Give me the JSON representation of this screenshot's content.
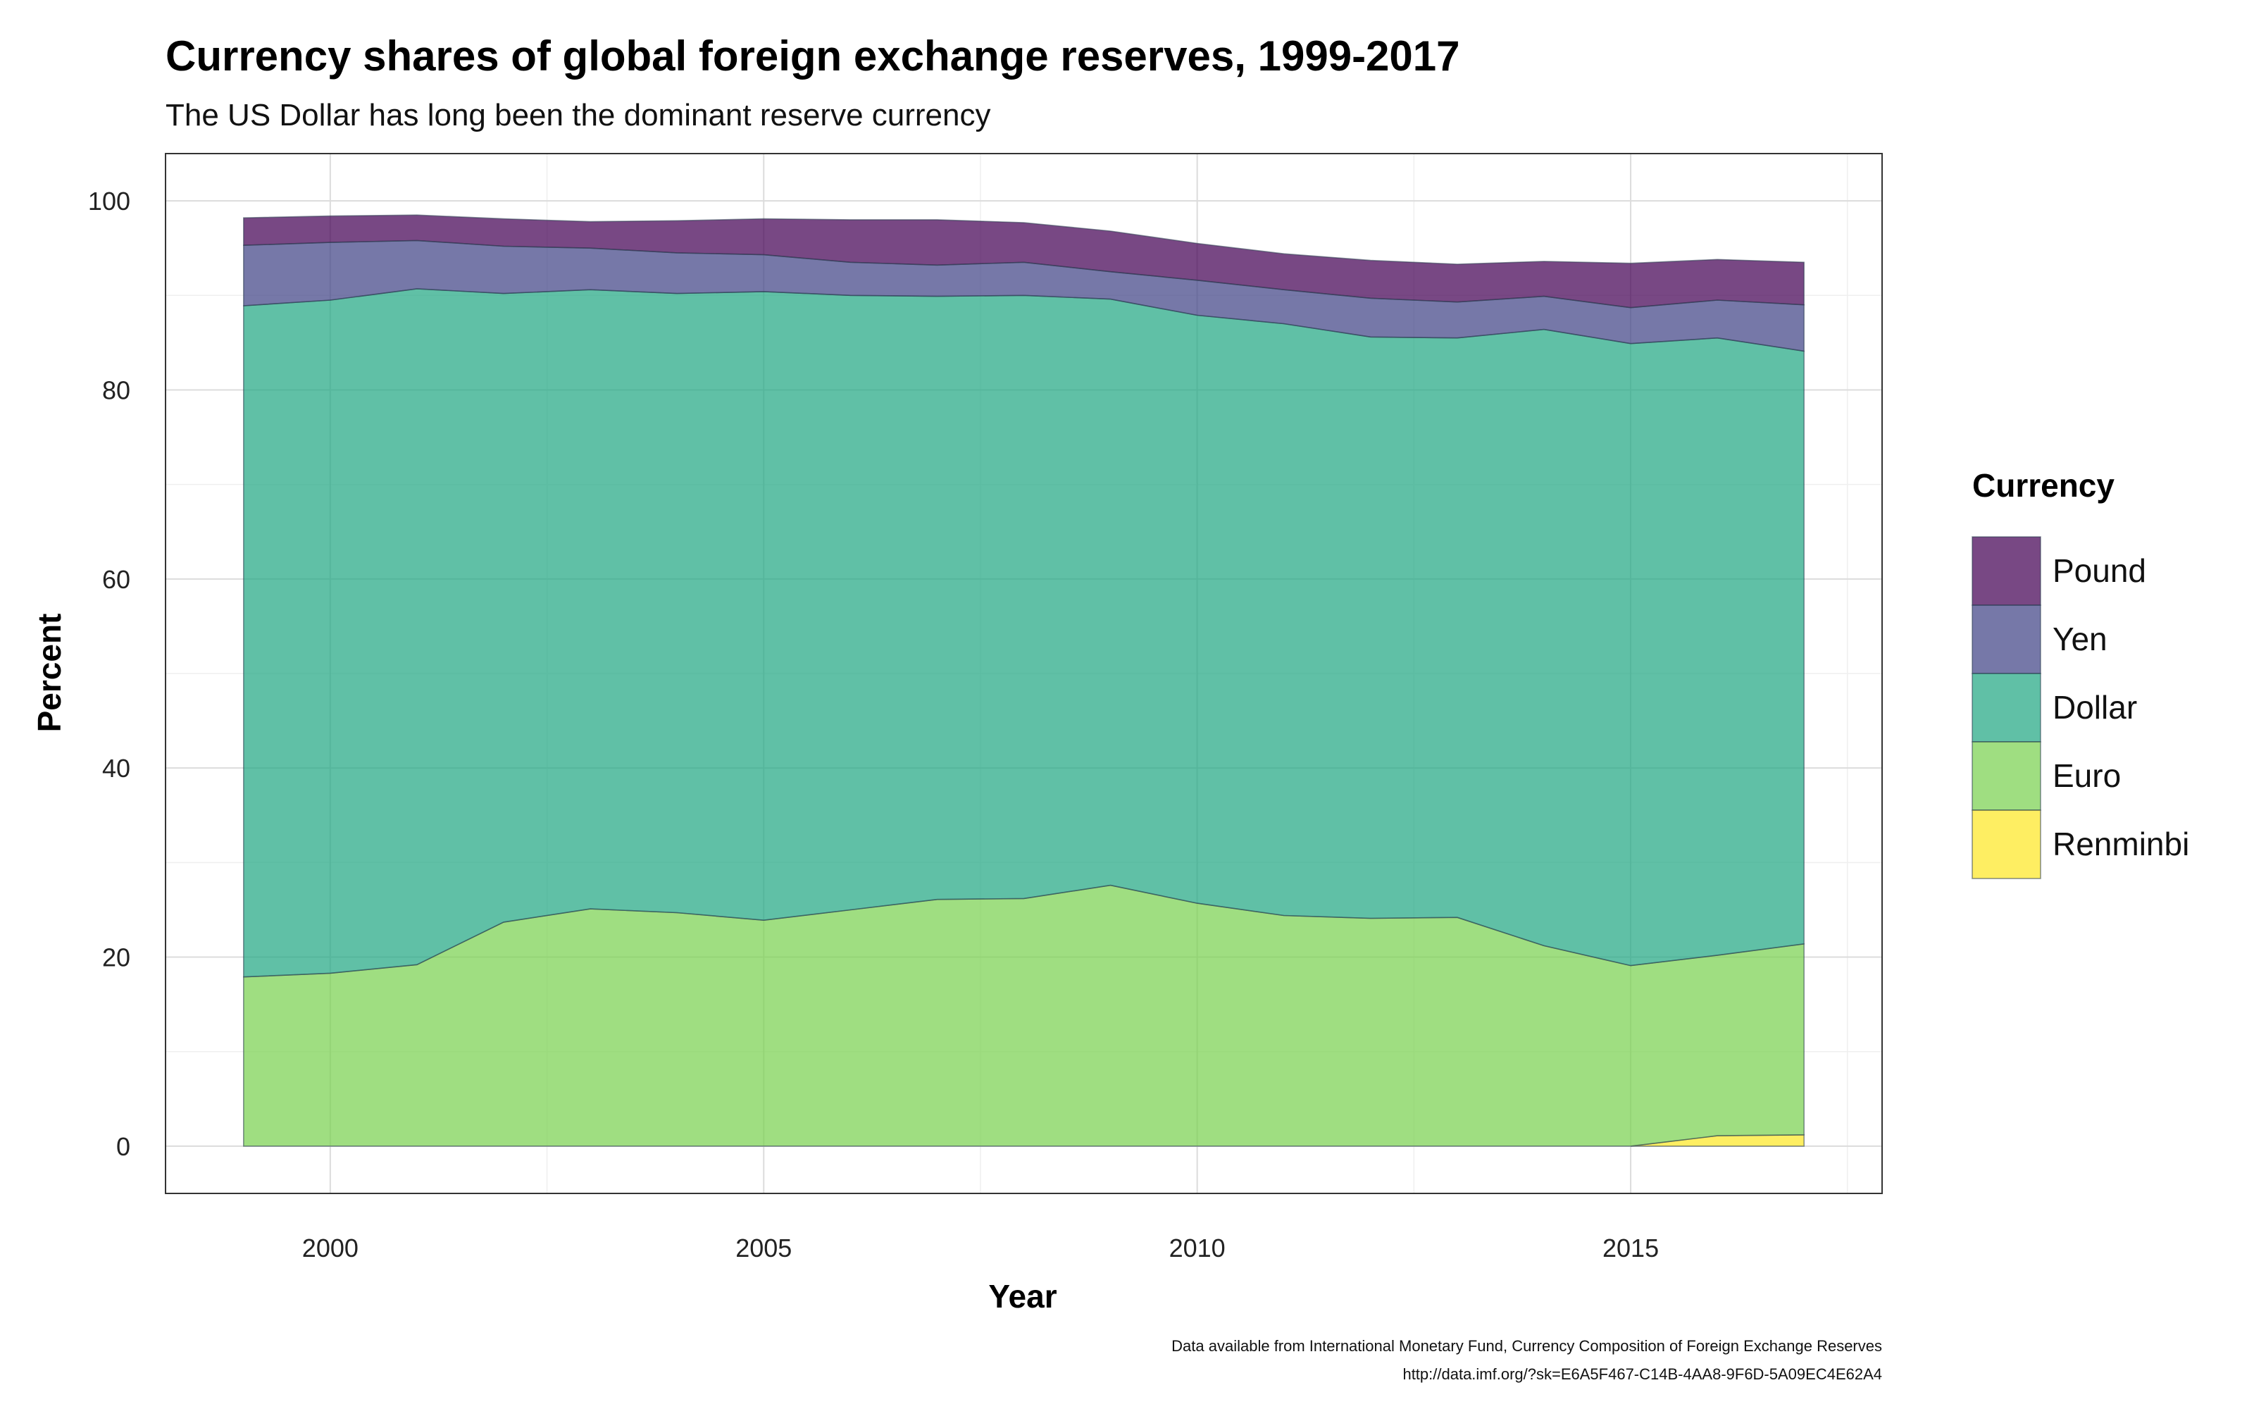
{
  "chart_data": {
    "type": "area",
    "stacked": true,
    "title": "Currency shares of global foreign exchange reserves, 1999-2017",
    "subtitle": "The US Dollar has long been the dominant reserve currency",
    "xlabel": "Year",
    "ylabel": "Percent",
    "xlim": [
      1998.1,
      2017.9
    ],
    "ylim": [
      -5,
      105
    ],
    "x_ticks": [
      2000,
      2005,
      2010,
      2015
    ],
    "y_ticks": [
      0,
      20,
      40,
      60,
      80,
      100
    ],
    "grid": true,
    "legend": {
      "title": "Currency",
      "position": "right",
      "entries": [
        "Pound",
        "Yen",
        "Dollar",
        "Euro",
        "Renminbi"
      ]
    },
    "caption": [
      "Data available from International Monetary Fund, Currency Composition of Foreign Exchange Reserves",
      "http://data.imf.org/?sk=E6A5F467-C14B-4AA8-9F6D-5A09EC4E62A4"
    ],
    "x": [
      1999,
      2000,
      2001,
      2002,
      2003,
      2004,
      2005,
      2006,
      2007,
      2008,
      2009,
      2010,
      2011,
      2012,
      2013,
      2014,
      2015,
      2016,
      2017
    ],
    "series": [
      {
        "name": "Renminbi",
        "color": "#FDE725",
        "values": [
          null,
          null,
          null,
          null,
          null,
          null,
          null,
          null,
          null,
          null,
          null,
          null,
          null,
          null,
          null,
          null,
          null,
          1.1,
          1.2
        ]
      },
      {
        "name": "Euro",
        "color": "#7AD151",
        "values": [
          17.9,
          18.3,
          19.2,
          23.7,
          25.1,
          24.7,
          23.9,
          25.0,
          26.1,
          26.2,
          27.6,
          25.7,
          24.4,
          24.1,
          24.2,
          21.2,
          19.1,
          19.1,
          20.2
        ]
      },
      {
        "name": "Dollar",
        "color": "#22A884",
        "values": [
          71.0,
          71.2,
          71.5,
          66.5,
          65.5,
          65.5,
          66.5,
          65.0,
          63.8,
          63.8,
          62.0,
          62.2,
          62.6,
          61.5,
          61.3,
          65.2,
          65.8,
          65.3,
          62.7
        ]
      },
      {
        "name": "Yen",
        "color": "#414487",
        "values": [
          6.4,
          6.1,
          5.1,
          5.0,
          4.4,
          4.3,
          3.9,
          3.5,
          3.3,
          3.5,
          2.9,
          3.7,
          3.6,
          4.1,
          3.8,
          3.5,
          3.8,
          4.0,
          4.9
        ]
      },
      {
        "name": "Pound",
        "color": "#440154",
        "values": [
          2.9,
          2.8,
          2.7,
          2.9,
          2.8,
          3.4,
          3.8,
          4.5,
          4.8,
          4.2,
          4.3,
          3.9,
          3.8,
          4.0,
          4.0,
          3.7,
          4.7,
          4.3,
          4.5
        ]
      }
    ]
  }
}
